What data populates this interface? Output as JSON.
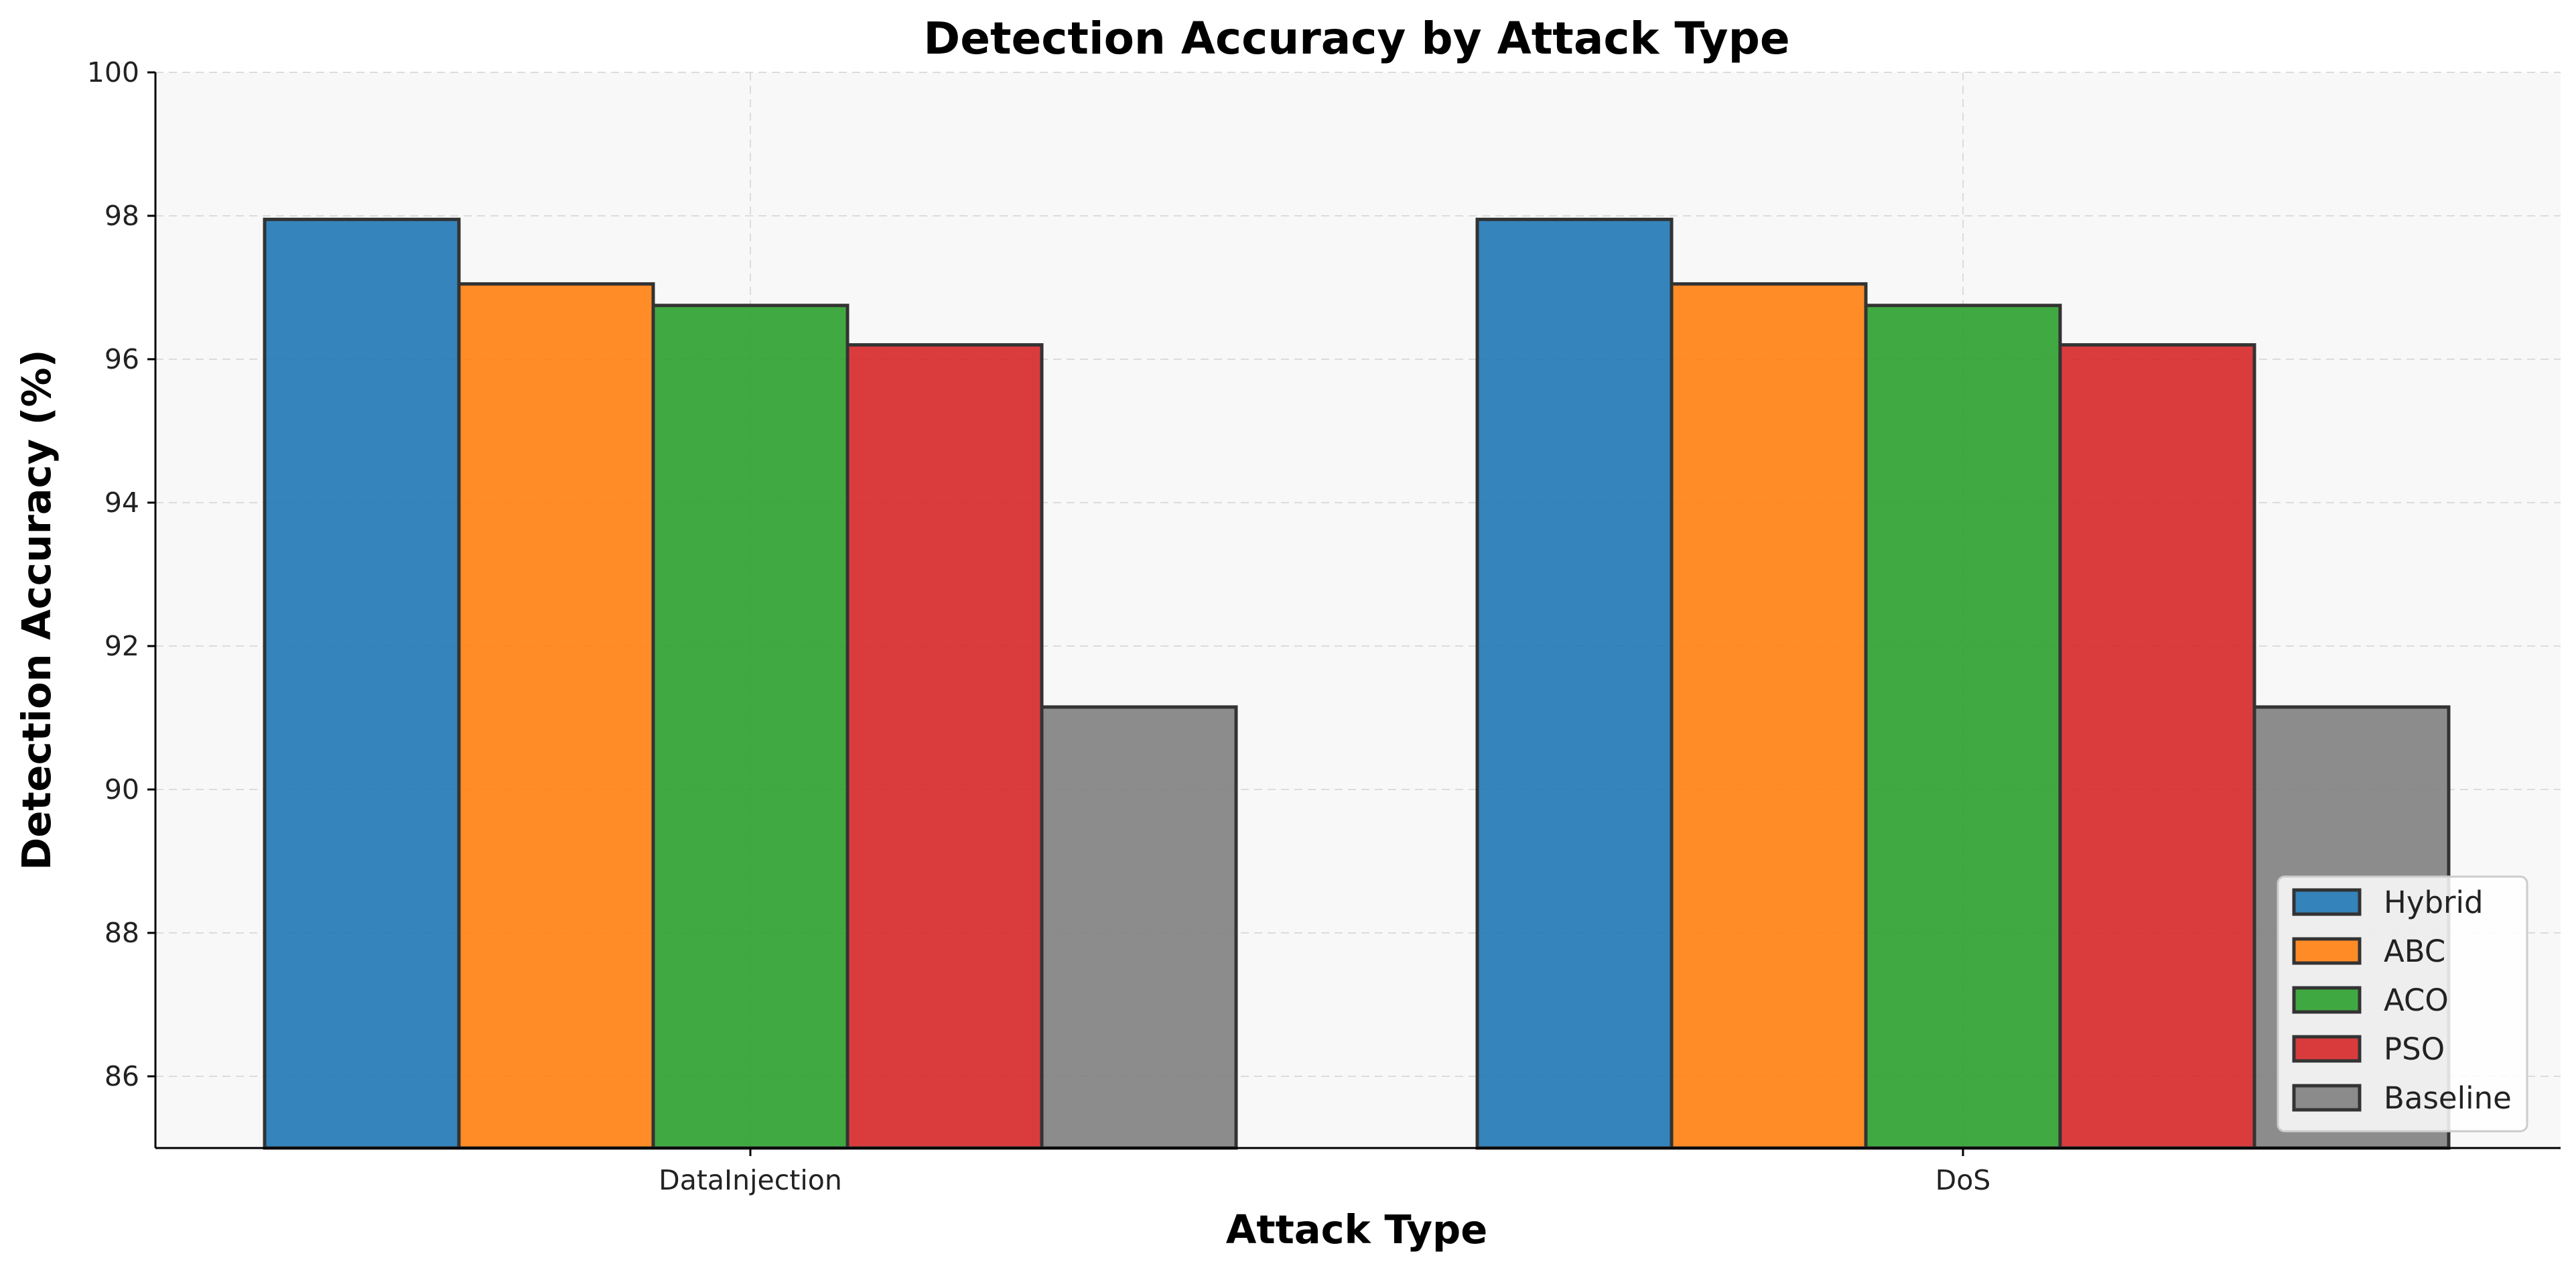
{
  "chart_data": {
    "type": "bar",
    "title": "Detection Accuracy by Attack Type",
    "xlabel": "Attack Type",
    "ylabel": "Detection Accuracy (%)",
    "categories": [
      "DataInjection",
      "DoS"
    ],
    "series": [
      {
        "name": "Hybrid",
        "color": "#1f77b4",
        "values": [
          97.95,
          97.95
        ]
      },
      {
        "name": "ABC",
        "color": "#ff7f0e",
        "values": [
          97.05,
          97.05
        ]
      },
      {
        "name": "ACO",
        "color": "#2ca02c",
        "values": [
          96.75,
          96.75
        ]
      },
      {
        "name": "PSO",
        "color": "#d62728",
        "values": [
          96.2,
          96.2
        ]
      },
      {
        "name": "Baseline",
        "color": "#7f7f7f",
        "values": [
          91.15,
          91.15
        ]
      }
    ],
    "ylim": [
      85,
      100
    ],
    "yticks": [
      86,
      88,
      90,
      92,
      94,
      96,
      98,
      100
    ],
    "grid": true,
    "legend_position": "lower-right"
  }
}
